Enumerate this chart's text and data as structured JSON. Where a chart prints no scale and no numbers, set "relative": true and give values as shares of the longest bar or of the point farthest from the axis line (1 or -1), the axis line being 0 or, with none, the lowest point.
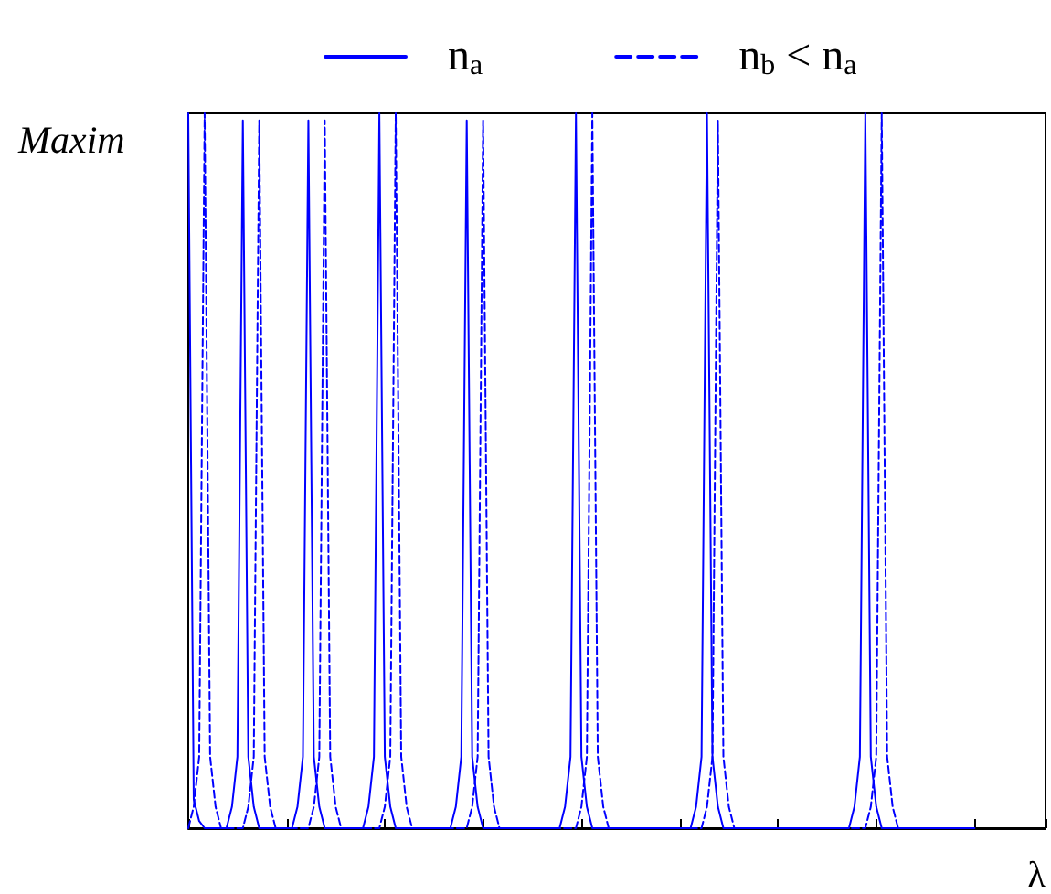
{
  "chart_data": {
    "type": "line",
    "relative": true,
    "ylabel": "Maxim",
    "xlabel": "λ",
    "legend": "top",
    "marker": "none",
    "categories": [
      null,
      null,
      null,
      null,
      null,
      null,
      null,
      null,
      null,
      null,
      null,
      null,
      null,
      null,
      null,
      null,
      null,
      null,
      null,
      null,
      null,
      null,
      null,
      null,
      null,
      null,
      null,
      null,
      null,
      null,
      null,
      null,
      null,
      null,
      null,
      null,
      null,
      null,
      null,
      null,
      null,
      null,
      null,
      null,
      null,
      null,
      null,
      null,
      null,
      null,
      null,
      null,
      null,
      null,
      null,
      null,
      null,
      null,
      null,
      null,
      null,
      null,
      null,
      null,
      null,
      null,
      null,
      null,
      null,
      null,
      null,
      null,
      null,
      null,
      null,
      null,
      null,
      null,
      null,
      null,
      null,
      null,
      null,
      null,
      null,
      null,
      null,
      null,
      null,
      null,
      null,
      null,
      null,
      null,
      null,
      null,
      null,
      null,
      null,
      null,
      null,
      null,
      null,
      null,
      null,
      null,
      null,
      null,
      null,
      null,
      null,
      null,
      null,
      null,
      null,
      null,
      null,
      null,
      null,
      null,
      null,
      null,
      null,
      null,
      null,
      null,
      null,
      null,
      null,
      null,
      null,
      null,
      null,
      null,
      null,
      null,
      null,
      null,
      null,
      null,
      null,
      null,
      null,
      null,
      null,
      null,
      null,
      null,
      null,
      null,
      null,
      null,
      null,
      null,
      null,
      null,
      null,
      null
    ],
    "series": [
      {
        "name": "n$_{a}$",
        "color": "#0000ff",
        "line_style": "solid",
        "values": [
          1,
          0.04,
          0.01,
          0,
          0,
          0,
          0,
          0,
          0.03,
          0.1,
          0.99,
          0.1,
          0.03,
          0,
          0,
          0,
          0,
          0,
          0,
          0,
          0.03,
          0.1,
          0.99,
          0.1,
          0.03,
          0,
          0,
          0,
          0,
          0,
          0,
          0,
          0,
          0.03,
          0.1,
          1,
          0.1,
          0.03,
          0,
          0,
          0,
          0,
          0,
          0,
          0,
          0,
          0,
          0,
          0,
          0.03,
          0.1,
          0.99,
          0.1,
          0.03,
          0,
          0,
          0,
          0,
          0,
          0,
          0,
          0,
          0,
          0,
          0,
          0,
          0,
          0,
          0,
          0.03,
          0.1,
          1,
          0.1,
          0.03,
          0,
          0,
          0,
          0,
          0,
          0,
          0,
          0,
          0,
          0,
          0,
          0,
          0,
          0,
          0,
          0,
          0,
          0,
          0,
          0.03,
          0.1,
          1,
          0.1,
          0.03,
          0,
          0,
          0,
          0,
          0,
          0,
          0,
          0,
          0,
          0,
          0,
          0,
          0,
          0,
          0,
          0,
          0,
          0,
          0,
          0,
          0,
          0,
          0,
          0,
          0.03,
          0.1,
          1,
          0.1,
          0.03,
          0,
          0,
          0,
          0,
          0,
          0,
          0,
          0,
          0,
          0,
          0,
          0,
          0,
          0,
          0,
          0,
          0,
          0,
          null,
          null,
          null,
          null,
          null,
          null,
          null,
          null,
          null,
          null,
          null,
          null,
          null
        ]
      },
      {
        "name": "n$_{b}$ < n$_{a}$",
        "color": "#0000ff",
        "line_style": "dashed",
        "values": [
          0,
          0.03,
          0.1,
          1,
          0.1,
          0.03,
          0,
          0,
          0,
          0,
          0,
          0.03,
          0.1,
          0.99,
          0.1,
          0.03,
          0,
          0,
          0,
          0,
          0,
          0,
          0,
          0.03,
          0.1,
          0.99,
          0.1,
          0.03,
          0,
          0,
          0,
          0,
          0,
          0,
          0,
          0,
          0.03,
          0.1,
          1,
          0.1,
          0.03,
          0,
          0,
          0,
          0,
          0,
          0,
          0,
          0,
          0,
          0,
          0,
          0.03,
          0.1,
          0.99,
          0.1,
          0.03,
          0,
          0,
          0,
          0,
          0,
          0,
          0,
          0,
          0,
          0,
          0,
          0,
          0,
          0,
          0,
          0.03,
          0.1,
          1,
          0.1,
          0.03,
          0,
          0,
          0,
          0,
          0,
          0,
          0,
          0,
          0,
          0,
          0,
          0,
          0,
          0,
          0,
          0,
          0,
          0,
          0.03,
          0.1,
          0.99,
          0.1,
          0.03,
          0,
          0,
          0,
          0,
          0,
          0,
          0,
          0,
          0,
          0,
          0,
          0,
          0,
          0,
          0,
          0,
          0,
          0,
          0,
          0,
          0,
          0,
          0,
          0,
          0,
          0.03,
          0.1,
          1,
          0.1,
          0.03,
          0,
          0,
          0,
          0,
          0,
          0,
          0,
          0,
          0,
          0,
          0,
          0,
          0,
          0,
          0,
          null,
          null,
          null,
          null,
          null,
          null,
          null,
          null,
          null,
          null,
          null,
          null,
          null
        ]
      }
    ]
  }
}
